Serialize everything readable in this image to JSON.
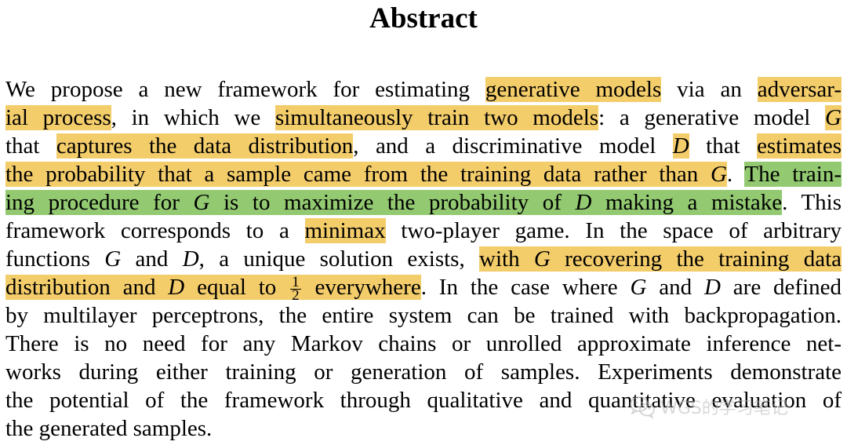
{
  "heading": "Abstract",
  "colors": {
    "highlight_yellow": "#f4cd6b",
    "highlight_green": "#92c971"
  },
  "abstract": {
    "lines": [
      [
        "We propose a new framework for estimating ",
        "generative models",
        " via an ",
        "adversar-"
      ],
      [
        "ial process",
        ", in which we ",
        "simultaneously train two models",
        ": a generative model ",
        "G"
      ],
      [
        "that ",
        "captures the data distribution",
        ", and a discriminative model ",
        "D",
        " that ",
        "estimates"
      ],
      [
        "the probability that a sample came from the training data rather than ",
        "G",
        ".",
        " ",
        "The train-"
      ],
      [
        "ing procedure for ",
        "G",
        " is to maximize the probability of ",
        "D",
        " making a mistake",
        ". This"
      ],
      [
        "framework corresponds to a ",
        "minimax",
        " two-player game. In the space of arbitrary"
      ],
      [
        "functions ",
        "G",
        " and ",
        "D",
        ", a unique solution exists, ",
        "with ",
        "G",
        " recovering the training data"
      ],
      [
        "distribution and ",
        "D",
        " equal to ",
        "1",
        "2",
        " everywhere",
        ". In the case where ",
        "G",
        " and ",
        "D",
        " are defined"
      ],
      [
        "by multilayer perceptrons, the entire system can be trained with backpropagation."
      ],
      [
        "There is no need for any Markov chains or unrolled approximate inference net-"
      ],
      [
        "works during either training or generation of samples. Experiments demonstrate"
      ],
      [
        "the potential of the framework through qualitative and quantitative evaluation of"
      ],
      [
        "the generated samples."
      ]
    ]
  },
  "watermark": {
    "icon": "wechat-icon",
    "text": "WGS的学习笔记"
  }
}
